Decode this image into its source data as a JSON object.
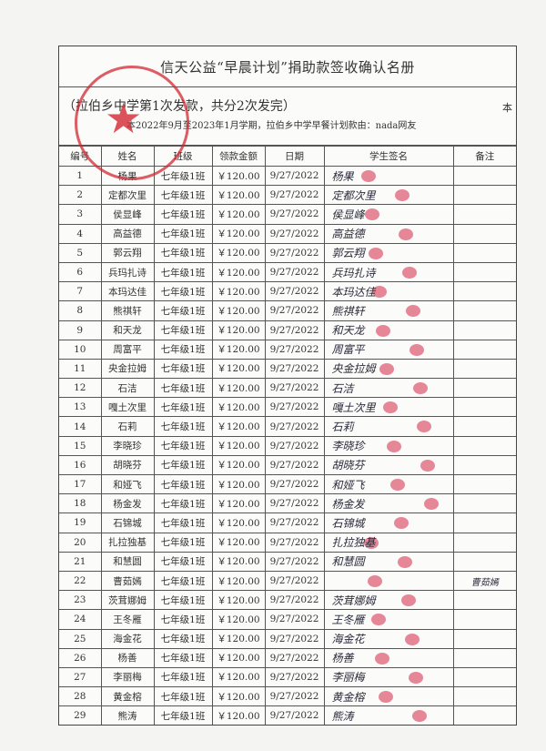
{
  "document": {
    "title": "信天公益“早晨计划”捐助款签收确认名册",
    "subtitle": "（拉伯乡中学第1次发款，共分2次发完）",
    "subtitle_right": "本",
    "description": "本2022年9月至2023年1月学期，拉伯乡中学早餐计划款由：nada网友",
    "seal_color": "#d22832",
    "fingerprint_color": "#d62846"
  },
  "table": {
    "headers": [
      "编号",
      "姓名",
      "班级",
      "领款金额",
      "日期",
      "学生签名",
      "备注"
    ],
    "rows": [
      {
        "no": "1",
        "name": "杨果",
        "class": "七年级1班",
        "amount": "￥120.00",
        "date": "9/27/2022",
        "signature": "杨果",
        "note": ""
      },
      {
        "no": "2",
        "name": "定都次里",
        "class": "七年级1班",
        "amount": "￥120.00",
        "date": "9/27/2022",
        "signature": "定都次里",
        "note": ""
      },
      {
        "no": "3",
        "name": "侯显峰",
        "class": "七年级1班",
        "amount": "￥120.00",
        "date": "9/27/2022",
        "signature": "侯显峰",
        "note": ""
      },
      {
        "no": "4",
        "name": "高益德",
        "class": "七年级1班",
        "amount": "￥120.00",
        "date": "9/27/2022",
        "signature": "高益德",
        "note": ""
      },
      {
        "no": "5",
        "name": "郭云翔",
        "class": "七年级1班",
        "amount": "￥120.00",
        "date": "9/27/2022",
        "signature": "郭云翔",
        "note": ""
      },
      {
        "no": "6",
        "name": "兵玛扎诗",
        "class": "七年级1班",
        "amount": "￥120.00",
        "date": "9/27/2022",
        "signature": "兵玛扎诗",
        "note": ""
      },
      {
        "no": "7",
        "name": "本玛达佳",
        "class": "七年级1班",
        "amount": "￥120.00",
        "date": "9/27/2022",
        "signature": "本玛达佳",
        "note": ""
      },
      {
        "no": "8",
        "name": "熊祺轩",
        "class": "七年级1班",
        "amount": "￥120.00",
        "date": "9/27/2022",
        "signature": "熊祺轩",
        "note": ""
      },
      {
        "no": "9",
        "name": "和天龙",
        "class": "七年级1班",
        "amount": "￥120.00",
        "date": "9/27/2022",
        "signature": "和天龙",
        "note": ""
      },
      {
        "no": "10",
        "name": "周富平",
        "class": "七年级1班",
        "amount": "￥120.00",
        "date": "9/27/2022",
        "signature": "周富平",
        "note": ""
      },
      {
        "no": "11",
        "name": "央金拉姆",
        "class": "七年级1班",
        "amount": "￥120.00",
        "date": "9/27/2022",
        "signature": "央金拉姆",
        "note": ""
      },
      {
        "no": "12",
        "name": "石洁",
        "class": "七年级1班",
        "amount": "￥120.00",
        "date": "9/27/2022",
        "signature": "石洁",
        "note": ""
      },
      {
        "no": "13",
        "name": "嘎土次里",
        "class": "七年级1班",
        "amount": "￥120.00",
        "date": "9/27/2022",
        "signature": "嘎土次里",
        "note": ""
      },
      {
        "no": "14",
        "name": "石莉",
        "class": "七年级1班",
        "amount": "￥120.00",
        "date": "9/27/2022",
        "signature": "石莉",
        "note": ""
      },
      {
        "no": "15",
        "name": "李晓珍",
        "class": "七年级1班",
        "amount": "￥120.00",
        "date": "9/27/2022",
        "signature": "李晓珍",
        "note": ""
      },
      {
        "no": "16",
        "name": "胡晓芬",
        "class": "七年级1班",
        "amount": "￥120.00",
        "date": "9/27/2022",
        "signature": "胡晓芬",
        "note": ""
      },
      {
        "no": "17",
        "name": "和娅飞",
        "class": "七年级1班",
        "amount": "￥120.00",
        "date": "9/27/2022",
        "signature": "和娅飞",
        "note": ""
      },
      {
        "no": "18",
        "name": "杨金发",
        "class": "七年级1班",
        "amount": "￥120.00",
        "date": "9/27/2022",
        "signature": "杨金发",
        "note": ""
      },
      {
        "no": "19",
        "name": "石锦城",
        "class": "七年级1班",
        "amount": "￥120.00",
        "date": "9/27/2022",
        "signature": "石锦城",
        "note": ""
      },
      {
        "no": "20",
        "name": "扎拉独基",
        "class": "七年级1班",
        "amount": "￥120.00",
        "date": "9/27/2022",
        "signature": "扎拉独基",
        "note": ""
      },
      {
        "no": "21",
        "name": "和慧圆",
        "class": "七年级1班",
        "amount": "￥120.00",
        "date": "9/27/2022",
        "signature": "和慧圆",
        "note": ""
      },
      {
        "no": "22",
        "name": "曹茹嫣",
        "class": "七年级1班",
        "amount": "￥120.00",
        "date": "9/27/2022",
        "signature": "",
        "note": "曹茹嫣"
      },
      {
        "no": "23",
        "name": "茨茸娜姆",
        "class": "七年级1班",
        "amount": "￥120.00",
        "date": "9/27/2022",
        "signature": "茨茸娜姆",
        "note": ""
      },
      {
        "no": "24",
        "name": "王冬雁",
        "class": "七年级1班",
        "amount": "￥120.00",
        "date": "9/27/2022",
        "signature": "王冬雁",
        "note": ""
      },
      {
        "no": "25",
        "name": "海金花",
        "class": "七年级1班",
        "amount": "￥120.00",
        "date": "9/27/2022",
        "signature": "海金花",
        "note": ""
      },
      {
        "no": "26",
        "name": "杨善",
        "class": "七年级1班",
        "amount": "￥120.00",
        "date": "9/27/2022",
        "signature": "杨善",
        "note": ""
      },
      {
        "no": "27",
        "name": "李丽梅",
        "class": "七年级1班",
        "amount": "￥120.00",
        "date": "9/27/2022",
        "signature": "李丽梅",
        "note": ""
      },
      {
        "no": "28",
        "name": "黄金榕",
        "class": "七年级1班",
        "amount": "￥120.00",
        "date": "9/27/2022",
        "signature": "黄金榕",
        "note": ""
      },
      {
        "no": "29",
        "name": "熊涛",
        "class": "七年级1班",
        "amount": "￥120.00",
        "date": "9/27/2022",
        "signature": "熊涛",
        "note": ""
      }
    ]
  }
}
